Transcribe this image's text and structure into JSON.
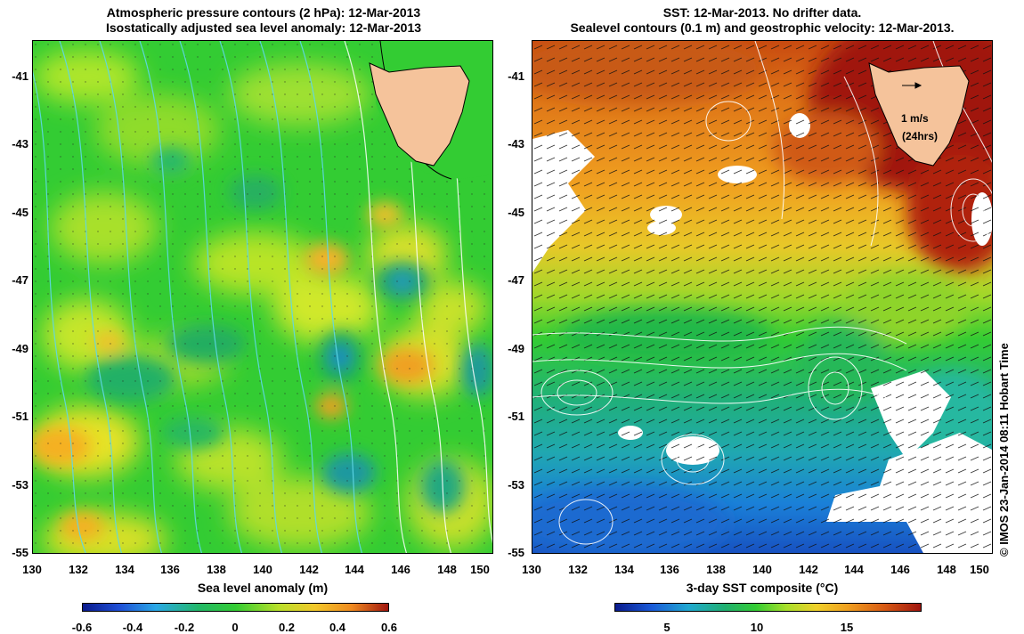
{
  "left_panel": {
    "title_line1": "Atmospheric pressure contours (2 hPa): 12-Mar-2013",
    "title_line2": "Isostatically adjusted sea level anomaly: 12-Mar-2013",
    "y_ticks": [
      "-41",
      "-43",
      "-45",
      "-47",
      "-49",
      "-51",
      "-53",
      "-55"
    ],
    "x_ticks": [
      "130",
      "132",
      "134",
      "136",
      "138",
      "140",
      "142",
      "144",
      "146",
      "148",
      "150"
    ],
    "colorbar_label": "Sea level anomaly (m)",
    "colorbar_ticks": [
      "-0.6",
      "-0.4",
      "-0.2",
      "0",
      "0.2",
      "0.4",
      "0.6"
    ]
  },
  "right_panel": {
    "title_line1": "SST: 12-Mar-2013. No drifter data.",
    "title_line2": "Sealevel contours (0.1 m) and geostrophic velocity: 12-Mar-2013.",
    "y_ticks": [
      "-41",
      "-43",
      "-45",
      "-47",
      "-49",
      "-51",
      "-53",
      "-55"
    ],
    "x_ticks": [
      "130",
      "132",
      "134",
      "136",
      "138",
      "140",
      "142",
      "144",
      "146",
      "148",
      "150"
    ],
    "velocity_key_value": "1 m/s",
    "velocity_key_time": "(24hrs)",
    "colorbar_label": "3-day SST composite (°C)",
    "colorbar_ticks": [
      "5",
      "10",
      "15"
    ]
  },
  "credit": "© IMOS 23-Jan-2014 08:11 Hobart Time",
  "colors": {
    "land": "#f5c39b",
    "sla_base": "#33cc33",
    "sst_warm": "#a0150f",
    "sst_cold": "#1a70d8",
    "contour": "#5fd8e8"
  },
  "icons": {
    "velocity_arrow": "right-arrow"
  }
}
